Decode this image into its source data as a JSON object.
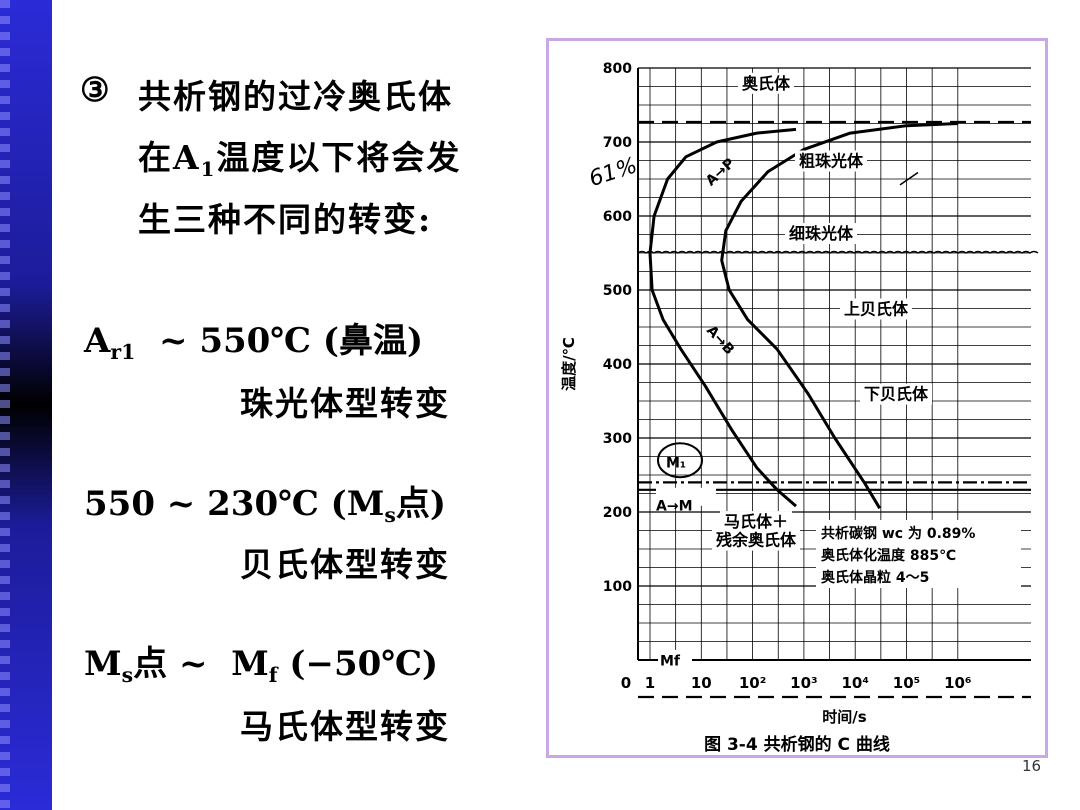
{
  "slide": {
    "intro": {
      "marker": "③",
      "line1": "共析钢的过冷奥氏体",
      "line2_pre": "在A",
      "line2_sub": "1",
      "line2_post": "温度以下将会发",
      "line3": "生三种不同的转变:"
    },
    "ranges": [
      {
        "head": "A",
        "head_sub": "r1",
        "head_rest": "  ~ 550℃ (鼻温)",
        "desc": "珠光体型转变"
      },
      {
        "head": "550 ~ 230℃ (M",
        "head_sub": "s",
        "head_rest": "点)",
        "desc": "贝氏体型转变"
      },
      {
        "head": "M",
        "head_sub": "s",
        "head_mid": "点 ~  M",
        "head_sub2": "f",
        "head_rest": " (−50℃)",
        "desc": "马氏体型转变"
      }
    ],
    "page_number": "16"
  },
  "colors": {
    "band": "#1c1c9a",
    "frame": "#c9a8e6",
    "ink": "#000000"
  },
  "chart_data": {
    "type": "line",
    "caption": "图 3-4   共析钢的 C 曲线",
    "xlabel": "时间/s",
    "ylabel": "温度/℃",
    "x_scale": "log",
    "x_ticks": [
      "0",
      "1",
      "10",
      "10²",
      "10³",
      "10⁴",
      "10⁵",
      "10⁶"
    ],
    "y_ticks": [
      100,
      200,
      300,
      400,
      500,
      600,
      700,
      800
    ],
    "ylim": [
      0,
      800
    ],
    "grid": true,
    "series": [
      {
        "name": "start",
        "x": [
          700,
          120,
          20,
          5,
          2.2,
          1.2,
          1,
          1.1,
          1.8,
          4,
          12,
          40,
          120,
          300,
          700
        ],
        "y": [
          717,
          712,
          700,
          680,
          650,
          600,
          550,
          500,
          460,
          420,
          370,
          310,
          260,
          230,
          208
        ]
      },
      {
        "name": "finish",
        "x": [
          1000000,
          100000,
          8000,
          1000,
          200,
          60,
          30,
          25,
          35,
          80,
          300,
          1200,
          4000,
          15000,
          30000
        ],
        "y": [
          725,
          722,
          712,
          690,
          660,
          620,
          580,
          540,
          500,
          460,
          420,
          360,
          300,
          240,
          205
        ]
      }
    ],
    "horizontal_lines": [
      {
        "y": 727,
        "style": "dash"
      },
      {
        "y": 550,
        "style": "wavy"
      },
      {
        "y": 240,
        "style": "dashdot"
      },
      {
        "y": 230,
        "style": "solid"
      },
      {
        "y": -50,
        "style": "dash"
      }
    ],
    "region_labels": [
      "奥氏体",
      "粗珠光体",
      "细珠光体",
      "上贝氏体",
      "下贝氏体",
      "马氏体＋",
      "残余奥氏体"
    ],
    "curve_labels": [
      "A→P",
      "A→B",
      "A→M",
      "M₁",
      "Mf"
    ],
    "note_lines": [
      "共析碳钢 wc 为 0.89%",
      "奥氏体化温度 885℃",
      "奥氏体晶粒 4～5"
    ],
    "handwriting": "61%"
  }
}
